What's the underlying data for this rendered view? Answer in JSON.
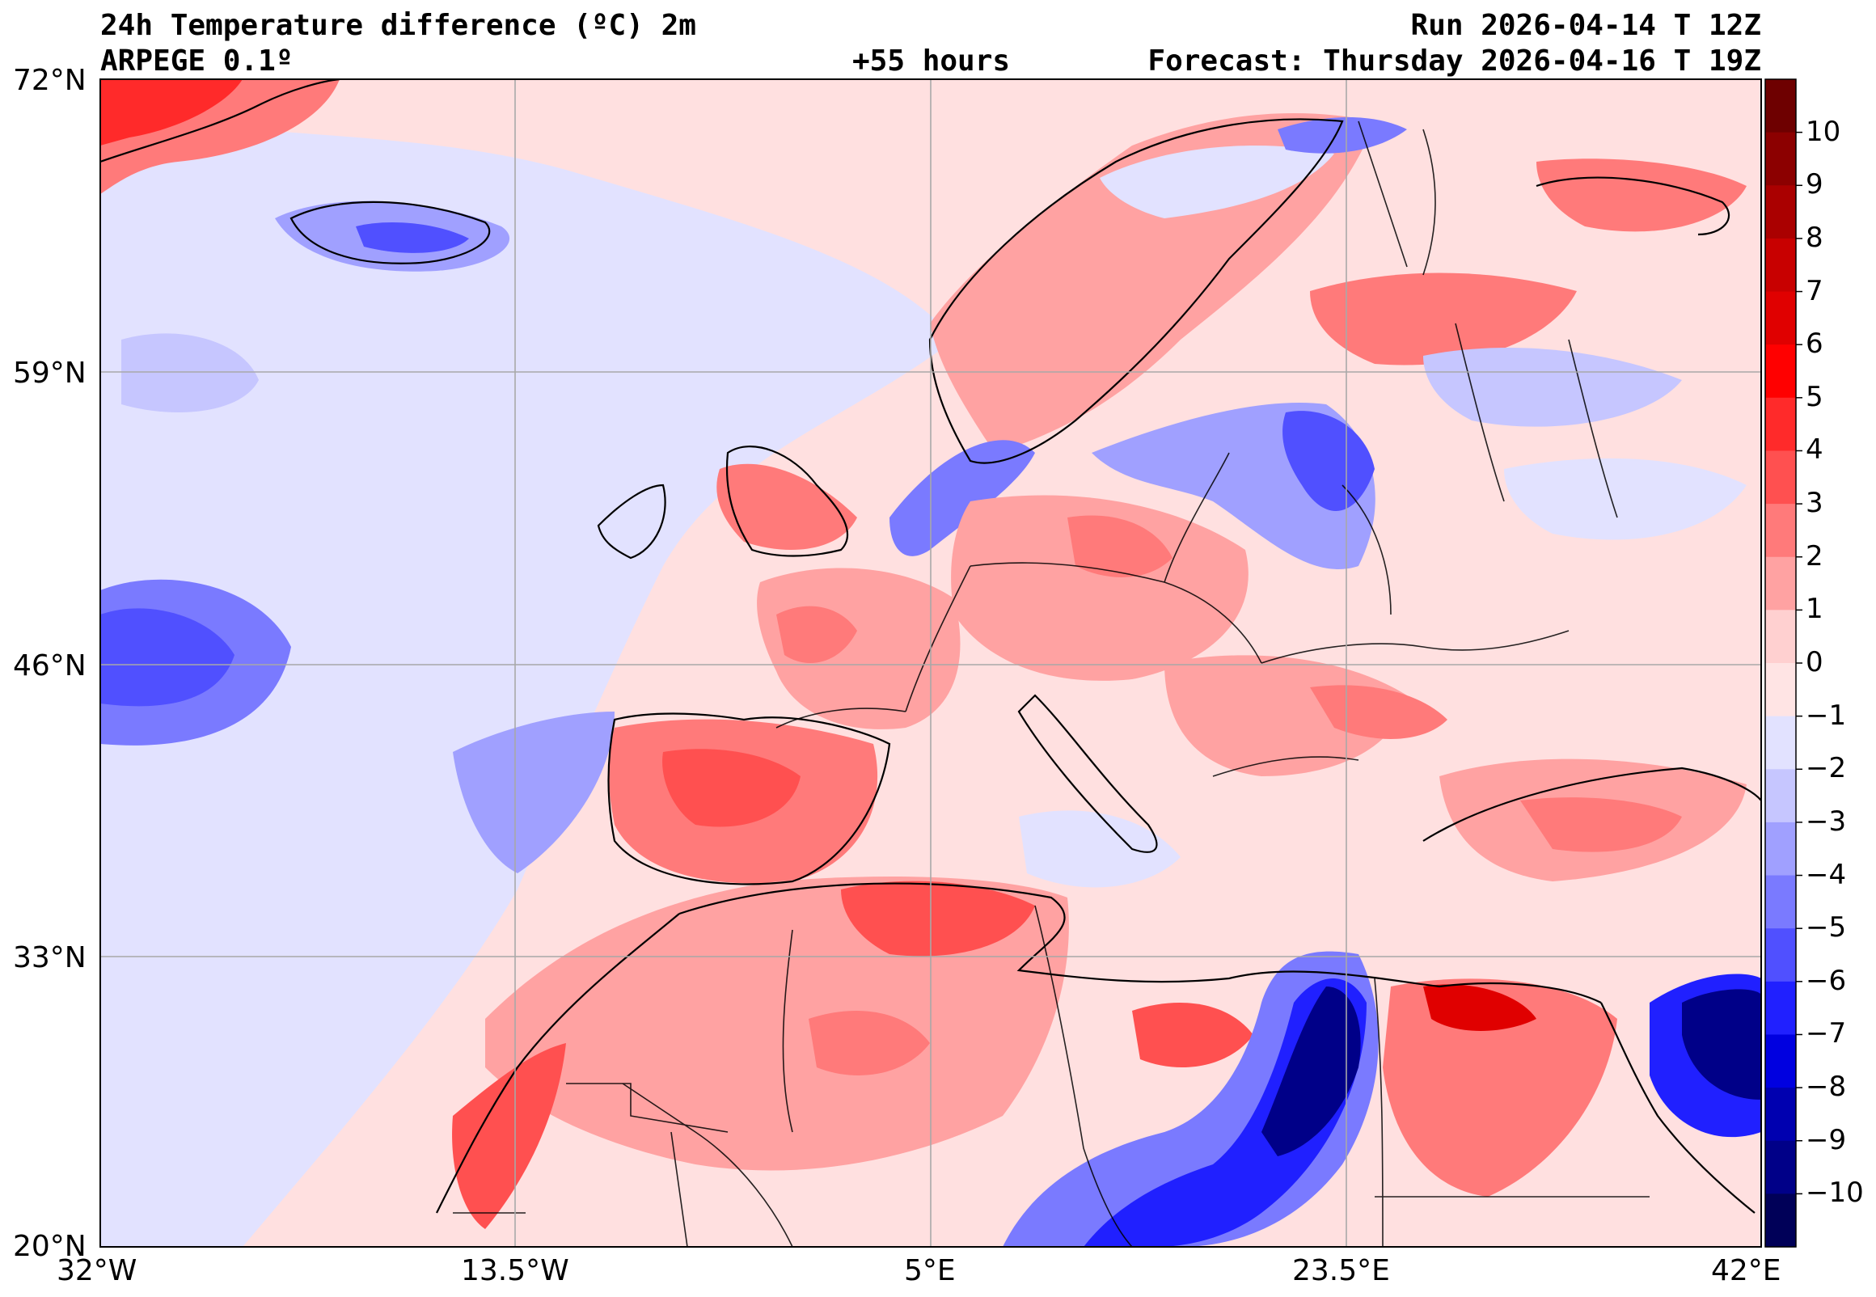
{
  "header": {
    "title": "24h Temperature difference (ºC) 2m",
    "model": "ARPEGE 0.1º",
    "lead_time": "+55 hours",
    "run": "Run 2026-04-14 T 12Z",
    "forecast": "Forecast: Thursday 2026-04-16 T 19Z"
  },
  "map": {
    "lon_labels": [
      "32°W",
      "13.5°W",
      "5°E",
      "23.5°E",
      "42°E"
    ],
    "lat_labels": [
      "72°N",
      "59°N",
      "46°N",
      "33°N",
      "20°N"
    ],
    "lon_range": [
      -32,
      42
    ],
    "lat_range": [
      20,
      72
    ],
    "grid": true
  },
  "colorbar": {
    "ticks": [
      "10",
      "9",
      "8",
      "7",
      "6",
      "5",
      "4",
      "3",
      "2",
      "1",
      "0",
      "−1",
      "−2",
      "−3",
      "−4",
      "−5",
      "−6",
      "−7",
      "−8",
      "−9",
      "−10"
    ],
    "range": [
      -11,
      11
    ],
    "colors_top_to_bottom": [
      "#6e0000",
      "#8c0000",
      "#aa0000",
      "#c80000",
      "#e00000",
      "#ff0000",
      "#ff2a2a",
      "#ff5050",
      "#ff7a7a",
      "#ffa2a2",
      "#ffd0d0",
      "#ffe4e4",
      "#e2e2ff",
      "#c6c6ff",
      "#a0a0ff",
      "#7a7aff",
      "#5050ff",
      "#2020ff",
      "#0000e0",
      "#0000b0",
      "#000088",
      "#000058"
    ]
  },
  "colors": {
    "warm_bg": "#ffe0e0",
    "cold_bg": "#e0e0ff",
    "grid": "#a8a8a8",
    "coast": "#000000"
  }
}
